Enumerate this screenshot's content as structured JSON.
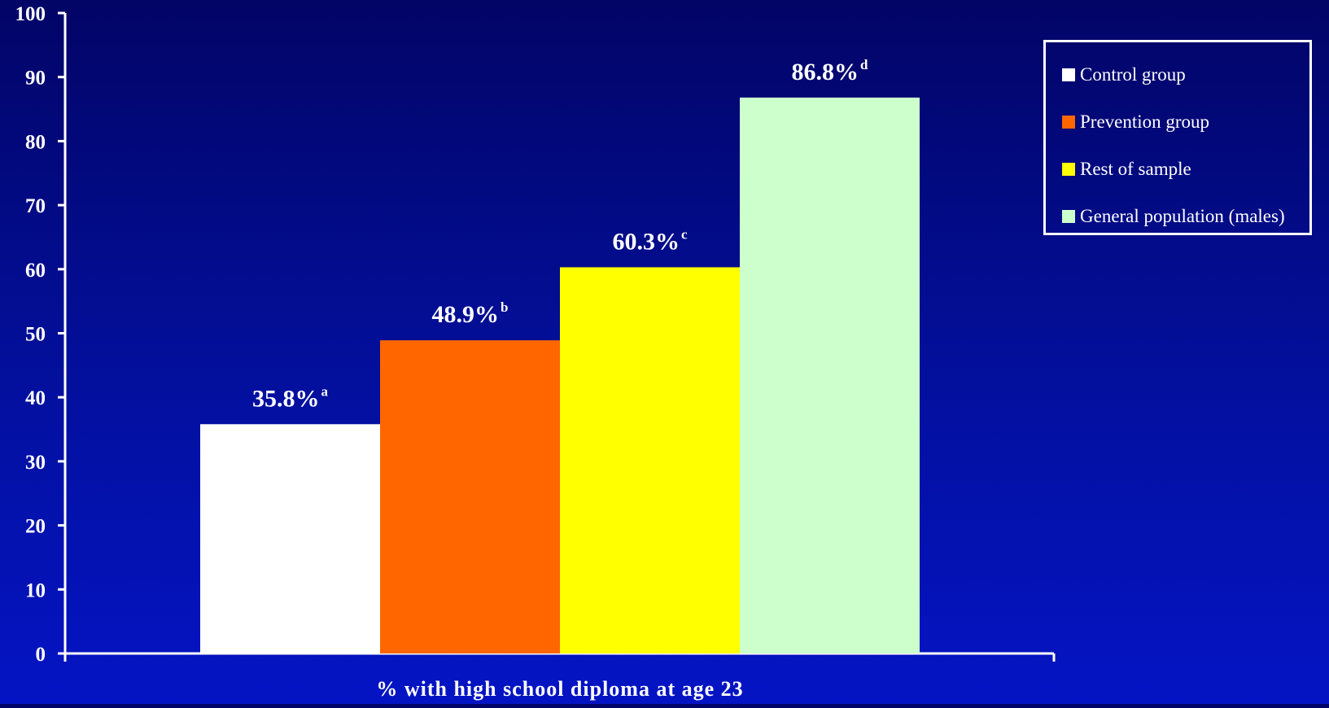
{
  "chart_data": {
    "type": "bar",
    "title": "",
    "xlabel": "% with high school diploma at age 23",
    "ylabel": "",
    "ylim": [
      0,
      100
    ],
    "yticks": [
      0,
      10,
      20,
      30,
      40,
      50,
      60,
      70,
      80,
      90,
      100
    ],
    "grid": false,
    "legend_position": "top-right",
    "series": [
      {
        "name": "Control group",
        "value": 35.8,
        "label": "35.8%",
        "superscript": "a",
        "color": "#ffffff"
      },
      {
        "name": "Prevention group",
        "value": 48.9,
        "label": "48.9%",
        "superscript": "b",
        "color": "#ff6600"
      },
      {
        "name": "Rest of sample",
        "value": 60.3,
        "label": "60.3%",
        "superscript": "c",
        "color": "#ffff00"
      },
      {
        "name": "General population (males)",
        "value": 86.8,
        "label": "86.8%",
        "superscript": "d",
        "color": "#ccffcc"
      }
    ]
  },
  "colors": {
    "background": "#0310a0",
    "axis": "#ffffff",
    "text": "#ffffff"
  }
}
